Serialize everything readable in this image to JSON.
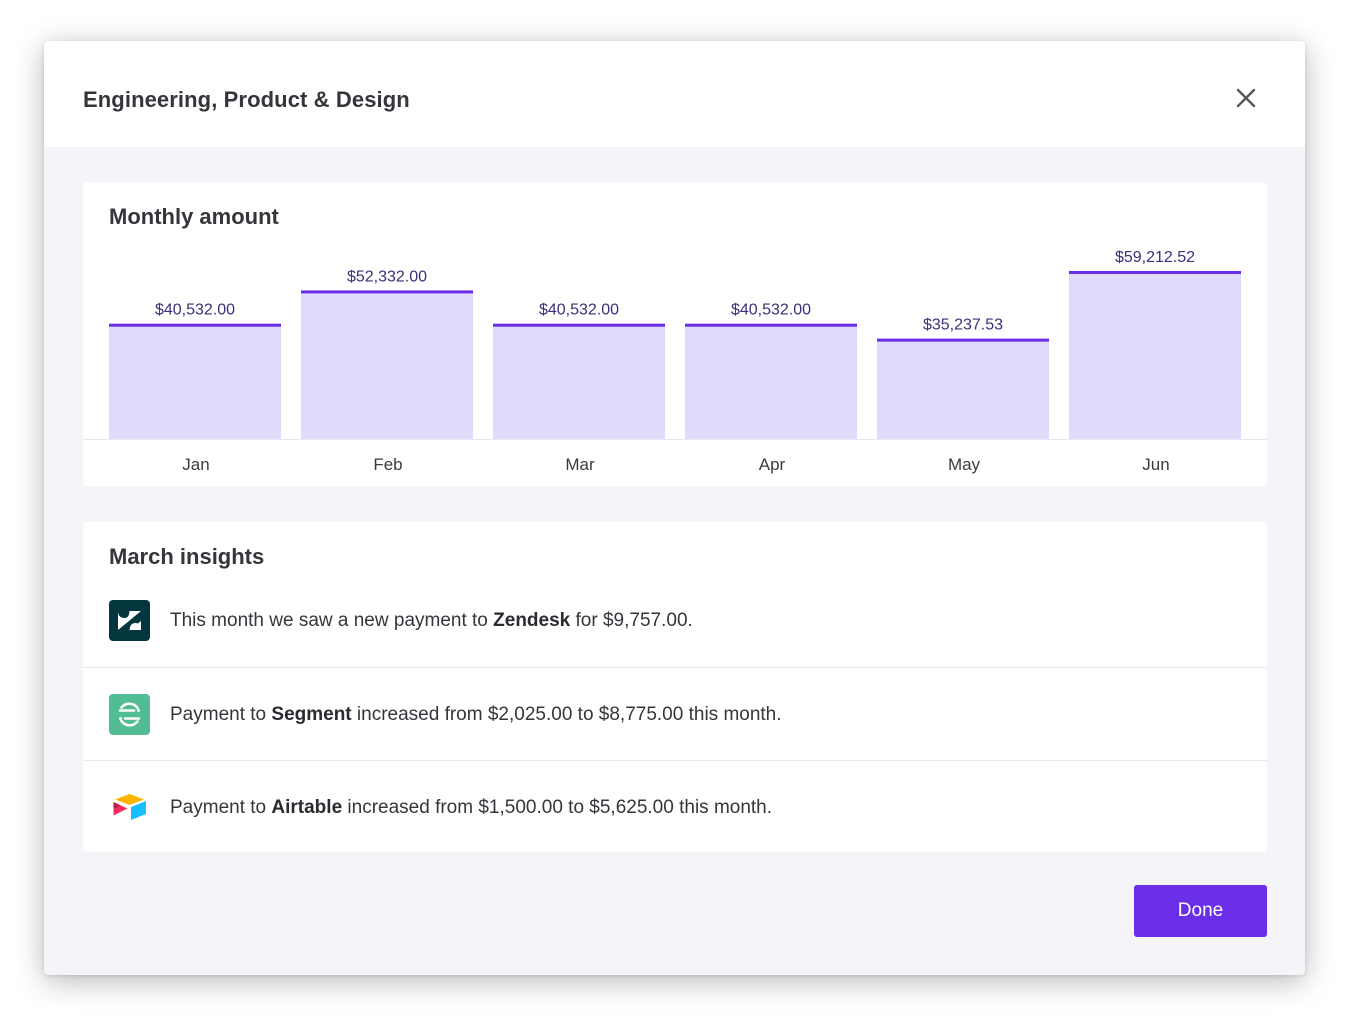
{
  "modal": {
    "title": "Engineering, Product & Design",
    "close_icon": "close-icon",
    "done_label": "Done"
  },
  "chart_card": {
    "title": "Monthly amount"
  },
  "chart_data": {
    "type": "bar",
    "title": "Monthly amount",
    "categories": [
      "Jan",
      "Feb",
      "Mar",
      "Apr",
      "May",
      "Jun"
    ],
    "values": [
      40532.0,
      52332.0,
      40532.0,
      40532.0,
      35237.53,
      59212.52
    ],
    "value_labels": [
      "$40,532.00",
      "$52,332.00",
      "$40,532.00",
      "$40,532.00",
      "$35,237.53",
      "$59,212.52"
    ],
    "xlabel": "",
    "ylabel": "",
    "grid": false,
    "colors": {
      "fill": "#e0dbfa",
      "top_line": "#6a2ee8",
      "label": "#3d2e78"
    }
  },
  "insights": {
    "title": "March insights",
    "items": [
      {
        "icon": "zendesk-logo-icon",
        "before": "This month we saw a new payment to ",
        "vendor": "Zendesk",
        "after": " for $9,757.00."
      },
      {
        "icon": "segment-logo-icon",
        "before": "Payment to ",
        "vendor": "Segment",
        "after": " increased from $2,025.00 to $8,775.00 this month."
      },
      {
        "icon": "airtable-logo-icon",
        "before": "Payment to ",
        "vendor": "Airtable",
        "after": " increased from $1,500.00 to $5,625.00 this month."
      }
    ]
  },
  "colors": {
    "accent": "#6a2ee8",
    "zendesk": "#03363d",
    "segment": "#52bd94"
  }
}
